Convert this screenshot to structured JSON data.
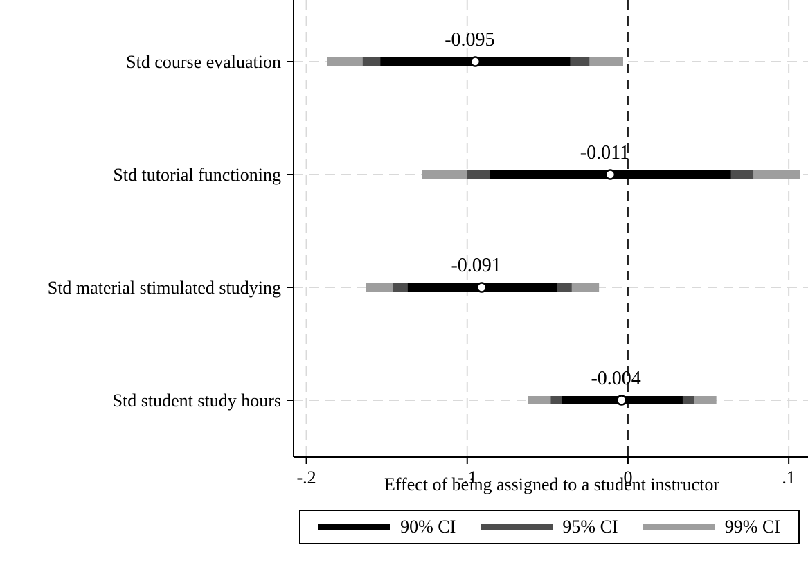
{
  "chart_data": {
    "type": "coefficient-plot",
    "orientation": "horizontal",
    "xlabel": "Effect of being assigned to a student instructor",
    "xlim": [
      -0.208,
      0.112
    ],
    "xticks": [
      -0.2,
      -0.1,
      0,
      0.1
    ],
    "xtick_labels": [
      "-.2",
      "-.1",
      "0",
      ".1"
    ],
    "reference_line": 0,
    "grid": true,
    "legend_position": "bottom",
    "ci_levels": [
      {
        "name": "90% CI",
        "color": "#000000"
      },
      {
        "name": "95% CI",
        "color": "#4d4d4d"
      },
      {
        "name": "99% CI",
        "color": "#9e9e9e"
      }
    ],
    "categories": [
      "Std course evaluation",
      "Std tutorial functioning",
      "Std material stimulated studying",
      "Std student study hours"
    ],
    "estimates": [
      {
        "label": "-0.095",
        "value": -0.095,
        "ci90": [
          -0.154,
          -0.036
        ],
        "ci95": [
          -0.165,
          -0.024
        ],
        "ci99": [
          -0.187,
          -0.003
        ]
      },
      {
        "label": "-0.011",
        "value": -0.011,
        "ci90": [
          -0.086,
          0.064
        ],
        "ci95": [
          -0.1,
          0.078
        ],
        "ci99": [
          -0.128,
          0.107
        ]
      },
      {
        "label": "-0.091",
        "value": -0.091,
        "ci90": [
          -0.137,
          -0.044
        ],
        "ci95": [
          -0.146,
          -0.035
        ],
        "ci99": [
          -0.163,
          -0.018
        ]
      },
      {
        "label": "-0.004",
        "value": -0.004,
        "ci90": [
          -0.041,
          0.034
        ],
        "ci95": [
          -0.048,
          0.041
        ],
        "ci99": [
          -0.062,
          0.055
        ]
      }
    ]
  }
}
